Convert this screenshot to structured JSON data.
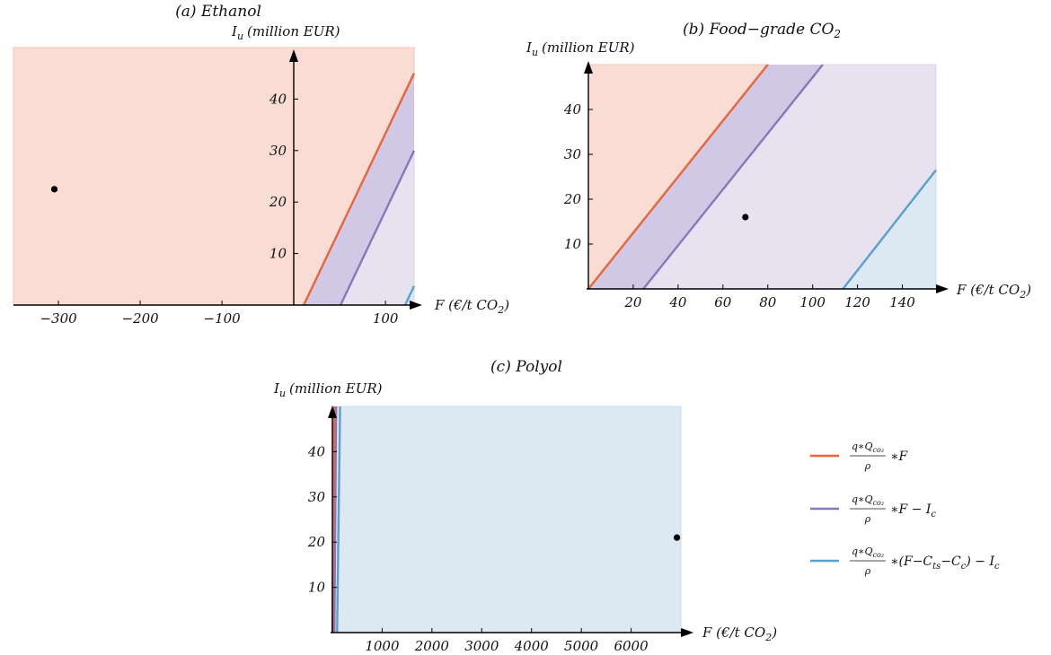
{
  "colors": {
    "red": "#e8653a",
    "purple": "#8878bb",
    "blue": "#5aa0cc",
    "red_fill": "#f9dcd3",
    "purple_fill": "#d0c8e4",
    "lavender_fill": "#e8e2f0",
    "blue_fill": "#dde9f2",
    "point": "#000000"
  },
  "chart_data": [
    {
      "type": "area",
      "title": "(a) Ethanol",
      "xlabel": "F (€/t CO₂)",
      "ylabel": "I_u (million EUR)",
      "xlim": [
        -355,
        135
      ],
      "ylim": [
        0,
        50
      ],
      "xticks": [
        {
          "v": -300,
          "label": "−300"
        },
        {
          "v": -200,
          "label": "−200"
        },
        {
          "v": -100,
          "label": "−100"
        },
        {
          "v": 100,
          "label": "100"
        }
      ],
      "yticks": [
        {
          "v": 10,
          "label": "10"
        },
        {
          "v": 20,
          "label": "20"
        },
        {
          "v": 30,
          "label": "30"
        },
        {
          "v": 40,
          "label": "40"
        }
      ],
      "series": [
        {
          "color_key": "red",
          "x": [
            0,
            135
          ],
          "y": [
            0,
            45
          ]
        },
        {
          "color_key": "purple",
          "x": [
            45,
            135
          ],
          "y": [
            0,
            30
          ]
        },
        {
          "color_key": "blue",
          "x": [
            124,
            135
          ],
          "y": [
            0,
            3.7
          ]
        }
      ],
      "point": {
        "x": -305,
        "y": 22.5
      }
    },
    {
      "type": "area",
      "title": "(b) Food−grade CO₂",
      "xlabel": "F (€/t CO₂)",
      "ylabel": "I_u (million EUR)",
      "xlim": [
        0,
        155
      ],
      "ylim": [
        0,
        50
      ],
      "xticks": [
        {
          "v": 20,
          "label": "20"
        },
        {
          "v": 40,
          "label": "40"
        },
        {
          "v": 60,
          "label": "60"
        },
        {
          "v": 80,
          "label": "80"
        },
        {
          "v": 100,
          "label": "100"
        },
        {
          "v": 120,
          "label": "120"
        },
        {
          "v": 140,
          "label": "140"
        }
      ],
      "yticks": [
        {
          "v": 10,
          "label": "10"
        },
        {
          "v": 20,
          "label": "20"
        },
        {
          "v": 30,
          "label": "30"
        },
        {
          "v": 40,
          "label": "40"
        }
      ],
      "series": [
        {
          "color_key": "red",
          "x": [
            0,
            80
          ],
          "y": [
            0,
            50
          ]
        },
        {
          "color_key": "purple",
          "x": [
            24.5,
            104.5
          ],
          "y": [
            0,
            50
          ]
        },
        {
          "color_key": "blue",
          "x": [
            113.5,
            155
          ],
          "y": [
            0,
            26.5
          ]
        }
      ],
      "point": {
        "x": 70,
        "y": 16
      }
    },
    {
      "type": "area",
      "title": "(c) Polyol",
      "xlabel": "F (€/t CO₂)",
      "ylabel": "I_u (million EUR)",
      "xlim": [
        0,
        7000
      ],
      "ylim": [
        0,
        50
      ],
      "xticks": [
        {
          "v": 1000,
          "label": "1000"
        },
        {
          "v": 2000,
          "label": "2000"
        },
        {
          "v": 3000,
          "label": "3000"
        },
        {
          "v": 4000,
          "label": "4000"
        },
        {
          "v": 5000,
          "label": "5000"
        },
        {
          "v": 6000,
          "label": "6000"
        }
      ],
      "yticks": [
        {
          "v": 10,
          "label": "10"
        },
        {
          "v": 20,
          "label": "20"
        },
        {
          "v": 30,
          "label": "30"
        },
        {
          "v": 40,
          "label": "40"
        }
      ],
      "series": [
        {
          "color_key": "red",
          "x": [
            0,
            35
          ],
          "y": [
            0,
            50
          ]
        },
        {
          "color_key": "purple",
          "x": [
            40,
            75
          ],
          "y": [
            0,
            50
          ]
        },
        {
          "color_key": "blue",
          "x": [
            95,
            155
          ],
          "y": [
            0,
            50
          ]
        }
      ],
      "point": {
        "x": 6920,
        "y": 21
      }
    }
  ],
  "legend": [
    {
      "color_key": "red",
      "num": "q∗Q",
      "num_sub": "co₂",
      "den": "ρ",
      "tail": "∗F"
    },
    {
      "color_key": "purple",
      "num": "q∗Q",
      "num_sub": "co₂",
      "den": "ρ",
      "tail": "∗F − I",
      "tail_sub": "c"
    },
    {
      "color_key": "blue",
      "num": "q∗Q",
      "num_sub": "co₂",
      "den": "ρ",
      "tail": "∗(F−C",
      "tail_sub": "ts",
      "tail2": "−C",
      "tail2_sub": "c",
      "tail3": ") − I",
      "tail3_sub": "c"
    }
  ]
}
